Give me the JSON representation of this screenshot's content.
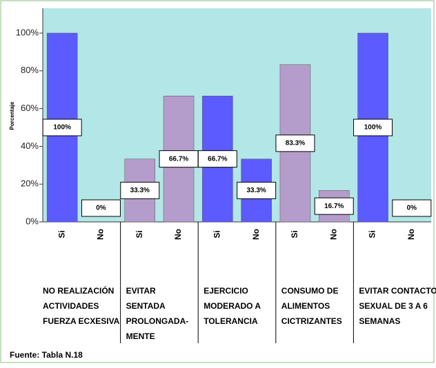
{
  "chart_data": {
    "type": "bar",
    "y_label": "Porcentaje",
    "categories": [
      "Si",
      "No",
      "Si",
      "No",
      "Si",
      "No",
      "Si",
      "No",
      "Si",
      "No"
    ],
    "values": [
      100,
      0,
      33.3,
      66.7,
      66.7,
      33.3,
      83.3,
      16.7,
      100,
      0
    ],
    "value_labels": [
      "100%",
      "0%",
      "33.3%",
      "66.7%",
      "66.7%",
      "33.3%",
      "83.3%",
      "16.7%",
      "100%",
      "0%"
    ],
    "colors": [
      "#5b5bff",
      "#5b5bff",
      "#b49ccb",
      "#b49ccb",
      "#5b5bff",
      "#5b5bff",
      "#b49ccb",
      "#b49ccb",
      "#5b5bff",
      "#5b5bff"
    ],
    "groups": [
      [
        "NO REALIZACIÓN",
        "ACTIVIDADES",
        "FUERZA ECXESIVA"
      ],
      [
        "EVITAR",
        "SENTADA",
        "PROLONGADA-",
        "MENTE"
      ],
      [
        "EJERCICIO",
        "MODERADO A",
        "TOLERANCIA"
      ],
      [
        "CONSUMO DE",
        "ALIMENTOS",
        "CICTRIZANTES"
      ],
      [
        "EVITAR CONTACTO",
        "SEXUAL DE 3 A 6",
        "SEMANAS"
      ]
    ],
    "ylim": [
      0,
      100
    ],
    "yticks": [
      {
        "value": 0,
        "label": "0%"
      },
      {
        "value": 20,
        "label": "20%"
      },
      {
        "value": 40,
        "label": "40%"
      },
      {
        "value": 60,
        "label": "60%"
      },
      {
        "value": 80,
        "label": "80%"
      },
      {
        "value": 100,
        "label": "100%"
      }
    ],
    "background": "#b3e6e6",
    "source": "Fuente: Tabla N.18"
  }
}
